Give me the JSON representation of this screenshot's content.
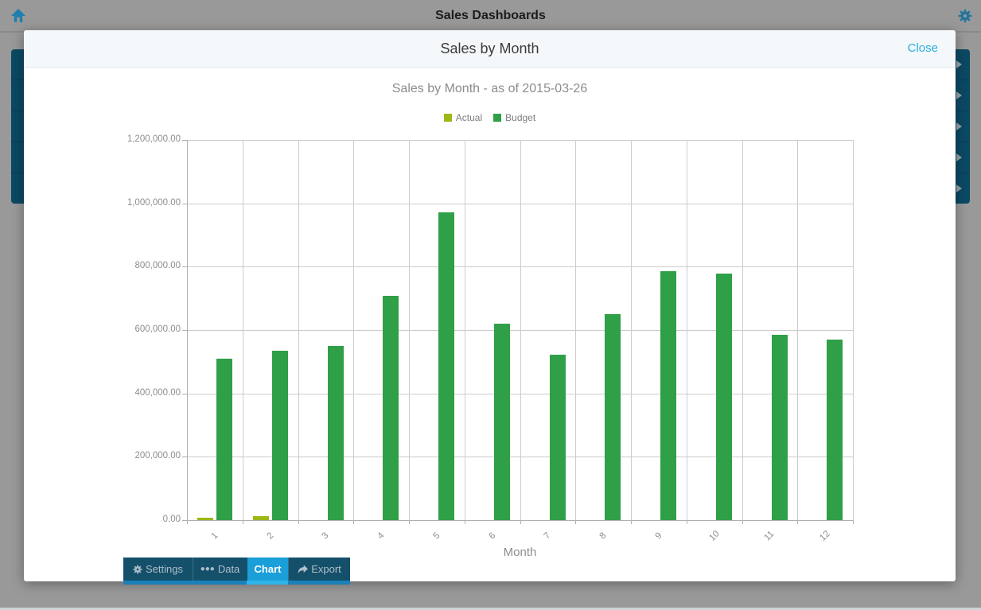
{
  "app_header": {
    "title": "Sales Dashboards"
  },
  "dashboard_list": {
    "row_count": 5
  },
  "modal": {
    "title": "Sales by Month",
    "close_label": "Close"
  },
  "chart_data": {
    "type": "bar",
    "title": "Sales by Month - as of 2015-03-26",
    "categories": [
      "1",
      "2",
      "3",
      "4",
      "5",
      "6",
      "7",
      "8",
      "9",
      "10",
      "11",
      "12"
    ],
    "series": [
      {
        "name": "Actual",
        "color": "#9eb617",
        "values": [
          6500,
          12500,
          0,
          0,
          0,
          0,
          0,
          0,
          0,
          0,
          0,
          0
        ]
      },
      {
        "name": "Budget",
        "color": "#2f9f48",
        "values": [
          509000,
          534000,
          549000,
          707000,
          971000,
          620000,
          521000,
          651000,
          787000,
          778000,
          584000,
          571000
        ]
      }
    ],
    "xlabel": "Month",
    "ylabel": "",
    "ylim": [
      0,
      1200000
    ],
    "ytick_step": 200000,
    "ytick_labels": [
      "0.00",
      "200,000.00",
      "400,000.00",
      "600,000.00",
      "800,000.00",
      "1,000,000.00",
      "1,200,000.00"
    ],
    "grid": true,
    "legend_position": "top"
  },
  "toolbar": {
    "tabs": [
      {
        "label": "Settings",
        "icon": "gear-icon",
        "active": false
      },
      {
        "label": "Data",
        "icon": "ellipsis-icon",
        "active": false
      },
      {
        "label": "Chart",
        "icon": null,
        "active": true
      },
      {
        "label": "Export",
        "icon": "export-icon",
        "active": false
      }
    ],
    "active_tab_color": "#1b9fd9",
    "underline_color": "#1a80ba",
    "active_underline_color": "#2db5ea"
  },
  "colors": {
    "close_link": "#29abe2",
    "row_background": "#0c4963",
    "overlay": "#999999"
  }
}
